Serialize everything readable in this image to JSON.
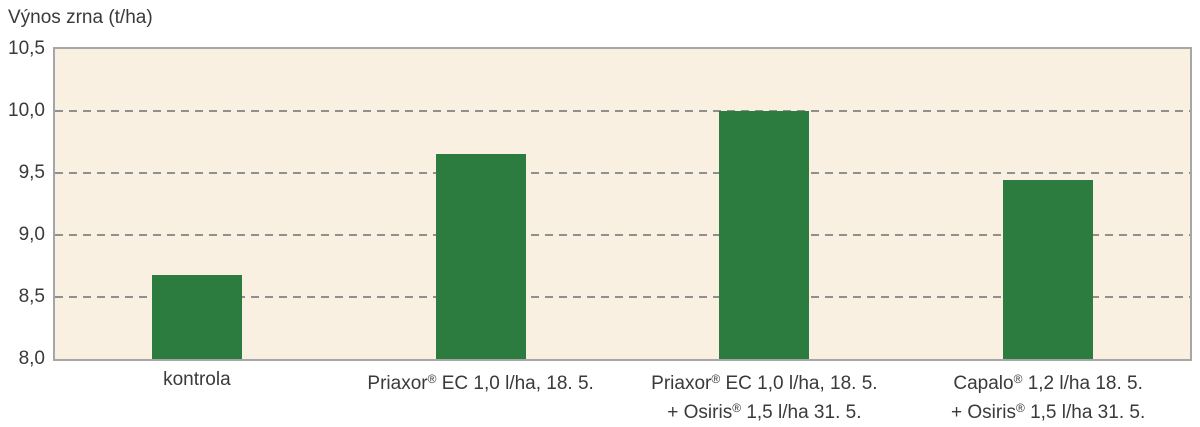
{
  "chart_data": {
    "type": "bar",
    "title": "Výnos zrna (t/ha)",
    "ylabel": "Výnos zrna (t/ha)",
    "xlabel": "",
    "ylim": [
      8.0,
      10.5
    ],
    "grid": "dashed horizontal",
    "legend_position": "none",
    "categories": [
      "kontrola",
      "Priaxor® EC 1,0 l/ha, 18. 5.",
      "Priaxor® EC 1,0 l/ha, 18. 5. + Osiris® 1,5 l/ha 31. 5.",
      "Capalo® 1,2 l/ha 18. 5. + Osiris® 1,5 l/ha 31. 5."
    ],
    "category_lines": [
      [
        "kontrola"
      ],
      [
        "Priaxor® EC 1,0 l/ha, 18. 5."
      ],
      [
        "Priaxor® EC 1,0 l/ha, 18. 5.",
        "+ Osiris® 1,5 l/ha 31. 5."
      ],
      [
        "Capalo® 1,2 l/ha 18. 5.",
        "+ Osiris® 1,5 l/ha 31. 5."
      ]
    ],
    "values": [
      8.68,
      9.65,
      10.0,
      9.44
    ],
    "yticks": [
      {
        "value": 10.5,
        "label": "10,5"
      },
      {
        "value": 10.0,
        "label": "10,0"
      },
      {
        "value": 9.5,
        "label": "9,5"
      },
      {
        "value": 9.0,
        "label": "9,0"
      },
      {
        "value": 8.5,
        "label": "8,5"
      },
      {
        "value": 8.0,
        "label": "8,0"
      }
    ],
    "gridlines": [
      10.0,
      9.5,
      9.0,
      8.5
    ]
  },
  "colors": {
    "bar": "#2d7c3f",
    "plot_background": "#faf0e2",
    "plot_border": "#a6a6a6",
    "gridline": "#8f8f8f",
    "text": "#3a3a3a"
  }
}
